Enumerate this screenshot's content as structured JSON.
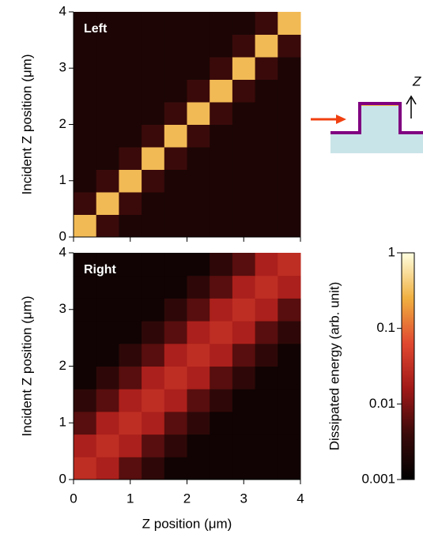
{
  "chart_data": [
    {
      "type": "heatmap",
      "panel_label": "Left",
      "ylabel": "Incident Z position  (μm)",
      "xlim": [
        0,
        4
      ],
      "ylim": [
        0,
        4
      ],
      "xticks": [
        0,
        1,
        2,
        3,
        4
      ],
      "yticks": [
        0,
        1,
        2,
        3,
        4
      ],
      "xtick_labels": false,
      "values": [
        [
          0.3,
          0.004,
          0.002,
          0.002,
          0.002,
          0.002,
          0.002,
          0.002,
          0.002,
          0.002
        ],
        [
          0.004,
          0.3,
          0.004,
          0.002,
          0.002,
          0.002,
          0.002,
          0.002,
          0.002,
          0.002
        ],
        [
          0.002,
          0.004,
          0.3,
          0.004,
          0.002,
          0.002,
          0.002,
          0.002,
          0.002,
          0.002
        ],
        [
          0.002,
          0.002,
          0.004,
          0.3,
          0.004,
          0.002,
          0.002,
          0.002,
          0.002,
          0.002
        ],
        [
          0.002,
          0.002,
          0.002,
          0.004,
          0.3,
          0.004,
          0.002,
          0.002,
          0.002,
          0.002
        ],
        [
          0.002,
          0.002,
          0.002,
          0.002,
          0.004,
          0.3,
          0.004,
          0.002,
          0.002,
          0.002
        ],
        [
          0.002,
          0.002,
          0.002,
          0.002,
          0.002,
          0.004,
          0.3,
          0.004,
          0.002,
          0.002
        ],
        [
          0.002,
          0.002,
          0.002,
          0.002,
          0.002,
          0.002,
          0.004,
          0.3,
          0.004,
          0.002
        ],
        [
          0.002,
          0.002,
          0.002,
          0.002,
          0.002,
          0.002,
          0.002,
          0.004,
          0.3,
          0.004
        ],
        [
          0.002,
          0.002,
          0.002,
          0.002,
          0.002,
          0.002,
          0.002,
          0.002,
          0.004,
          0.3
        ]
      ]
    },
    {
      "type": "heatmap",
      "panel_label": "Right",
      "ylabel": "Incident Z position  (μm)",
      "xlabel": "Z position  (μm)",
      "xlim": [
        0,
        4
      ],
      "ylim": [
        0,
        4
      ],
      "xticks": [
        0,
        1,
        2,
        3,
        4
      ],
      "yticks": [
        0,
        1,
        2,
        3,
        4
      ],
      "xtick_labels": true,
      "values": [
        [
          0.03,
          0.02,
          0.006,
          0.003,
          0.0015,
          0.0015,
          0.0015,
          0.0015,
          0.0015,
          0.0015
        ],
        [
          0.02,
          0.03,
          0.02,
          0.006,
          0.003,
          0.0015,
          0.0015,
          0.0015,
          0.0015,
          0.0015
        ],
        [
          0.006,
          0.02,
          0.03,
          0.02,
          0.006,
          0.003,
          0.0015,
          0.0015,
          0.0015,
          0.0015
        ],
        [
          0.003,
          0.006,
          0.02,
          0.03,
          0.02,
          0.006,
          0.003,
          0.0015,
          0.0015,
          0.0015
        ],
        [
          0.0015,
          0.003,
          0.006,
          0.02,
          0.03,
          0.02,
          0.006,
          0.003,
          0.0015,
          0.0015
        ],
        [
          0.0015,
          0.0015,
          0.003,
          0.006,
          0.02,
          0.03,
          0.02,
          0.006,
          0.003,
          0.0015
        ],
        [
          0.0015,
          0.0015,
          0.0015,
          0.003,
          0.006,
          0.02,
          0.03,
          0.02,
          0.006,
          0.003
        ],
        [
          0.0015,
          0.0015,
          0.0015,
          0.0015,
          0.003,
          0.006,
          0.02,
          0.03,
          0.02,
          0.006
        ],
        [
          0.0015,
          0.0015,
          0.0015,
          0.0015,
          0.0015,
          0.003,
          0.006,
          0.02,
          0.03,
          0.02
        ],
        [
          0.0015,
          0.0015,
          0.0015,
          0.0015,
          0.0015,
          0.0015,
          0.003,
          0.006,
          0.02,
          0.03
        ]
      ]
    }
  ],
  "colorbar": {
    "label": "Dissipated energy  (arb. unit)",
    "log": true,
    "lim": [
      0.001,
      1
    ],
    "ticks": [
      0.001,
      0.01,
      0.1,
      1
    ],
    "colormap": [
      "#000000",
      "#3a0a0a",
      "#a01818",
      "#e04830",
      "#f0b040",
      "#ffffe0"
    ]
  },
  "inset": {
    "axis_label": "Z"
  }
}
